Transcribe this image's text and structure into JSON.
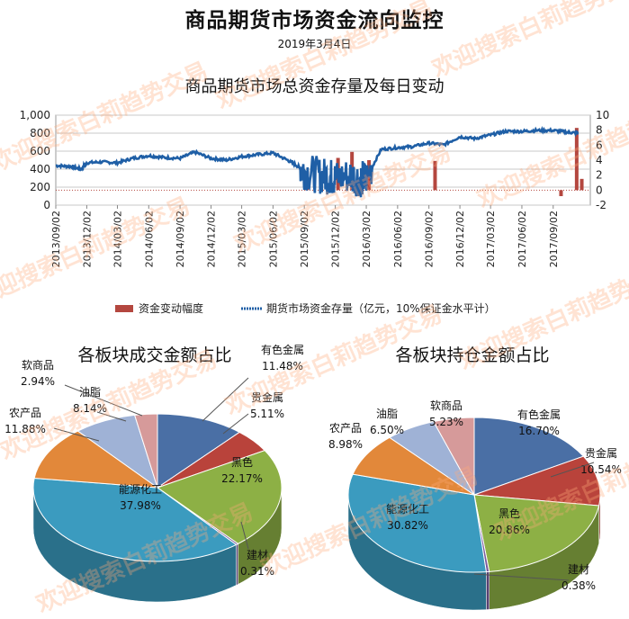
{
  "title": "商品期货市场资金流向监控",
  "date": "2019年3月4日",
  "watermark": "欢迎搜索白莉趋势交易",
  "chart_data": [
    {
      "type": "line",
      "title": "商品期货市场总资金存量及每日变动",
      "x_ticks": [
        "2013/09/02",
        "2013/12/02",
        "2014/03/02",
        "2014/06/02",
        "2014/09/02",
        "2014/12/02",
        "2015/03/02",
        "2015/06/02",
        "2015/09/02",
        "2015/12/02",
        "2016/03/02",
        "2016/06/02",
        "2016/09/02",
        "2016/12/02",
        "2017/03/02",
        "2017/06/02",
        "2017/09/02"
      ],
      "y_left_ticks": [
        "0",
        "200",
        "400",
        "600",
        "800",
        "1,000"
      ],
      "y_right_ticks": [
        "-2",
        "0",
        "2",
        "4",
        "6",
        "8",
        "10"
      ],
      "ylim_left": [
        0,
        1000
      ],
      "ylim_right": [
        -2,
        10
      ],
      "series": [
        {
          "name": "期货市场资金存量（亿元，10%保证金水平计）",
          "axis": "left",
          "color": "#1f5fa6",
          "x": [
            "2013/09/02",
            "2013/10/15",
            "2013/11/15",
            "2013/12/02",
            "2014/01/15",
            "2014/03/02",
            "2014/04/15",
            "2014/06/02",
            "2014/07/15",
            "2014/09/02",
            "2014/10/15",
            "2014/12/02",
            "2015/01/15",
            "2015/03/02",
            "2015/04/15",
            "2015/06/02",
            "2015/07/15",
            "2015/08/15",
            "2015/09/02",
            "2015/10/15",
            "2015/11/15",
            "2015/12/02",
            "2016/01/15",
            "2016/02/15",
            "2016/03/02",
            "2016/04/15",
            "2016/06/02",
            "2016/07/15",
            "2016/09/02",
            "2016/10/15",
            "2016/12/02",
            "2017/01/15",
            "2017/03/02",
            "2017/04/15",
            "2017/06/02",
            "2017/07/15",
            "2017/09/02",
            "2017/10/15",
            "2017/11/15"
          ],
          "values": [
            440,
            430,
            400,
            470,
            480,
            470,
            520,
            550,
            530,
            520,
            590,
            520,
            500,
            540,
            560,
            580,
            500,
            430,
            380,
            330,
            320,
            300,
            330,
            290,
            300,
            620,
            640,
            650,
            690,
            670,
            760,
            740,
            780,
            820,
            820,
            830,
            830,
            810,
            800
          ]
        },
        {
          "name": "资金变动幅度",
          "axis": "right",
          "color": "#b4473f",
          "x": [
            "2015/09/10",
            "2015/12/10",
            "2016/01/20",
            "2016/03/10",
            "2016/09/20",
            "2017/09/25",
            "2017/11/10",
            "2017/11/25"
          ],
          "values": [
            2.5,
            4.3,
            5.1,
            4.0,
            3.9,
            -0.8,
            8.3,
            1.5
          ]
        }
      ],
      "legend": [
        "资金变动幅度",
        "期货市场资金存量（亿元，10%保证金水平计）"
      ],
      "legend_position": "bottom"
    },
    {
      "type": "pie",
      "title": "各板块成交金额占比",
      "slices": [
        {
          "name": "有色金属",
          "value": 11.48,
          "label": "11.48%",
          "color": "#4a6fa5"
        },
        {
          "name": "贵金属",
          "value": 5.11,
          "label": "5.11%",
          "color": "#b9433b"
        },
        {
          "name": "黑色",
          "value": 22.17,
          "label": "22.17%",
          "color": "#8db045"
        },
        {
          "name": "建材",
          "value": 0.31,
          "label": "0.31%",
          "color": "#7a5a9c"
        },
        {
          "name": "能源化工",
          "value": 37.98,
          "label": "37.98%",
          "color": "#3b9bbf"
        },
        {
          "name": "农产品",
          "value": 11.88,
          "label": "11.88%",
          "color": "#e2883a"
        },
        {
          "name": "油脂",
          "value": 8.14,
          "label": "8.14%",
          "color": "#9fb2d6"
        },
        {
          "name": "软商品",
          "value": 2.94,
          "label": "2.94%",
          "color": "#d69a9a"
        }
      ]
    },
    {
      "type": "pie",
      "title": "各板块持仓金额占比",
      "slices": [
        {
          "name": "有色金属",
          "value": 16.7,
          "label": "16.70%",
          "color": "#4a6fa5"
        },
        {
          "name": "贵金属",
          "value": 10.54,
          "label": "10.54%",
          "color": "#b9433b"
        },
        {
          "name": "黑色",
          "value": 20.86,
          "label": "20.86%",
          "color": "#8db045"
        },
        {
          "name": "建材",
          "value": 0.38,
          "label": "0.38%",
          "color": "#7a5a9c"
        },
        {
          "name": "能源化工",
          "value": 30.82,
          "label": "30.82%",
          "color": "#3b9bbf"
        },
        {
          "name": "农产品",
          "value": 8.98,
          "label": "8.98%",
          "color": "#e2883a"
        },
        {
          "name": "油脂",
          "value": 6.5,
          "label": "6.50%",
          "color": "#9fb2d6"
        },
        {
          "name": "软商品",
          "value": 5.23,
          "label": "5.23%",
          "color": "#d69a9a"
        }
      ]
    }
  ]
}
